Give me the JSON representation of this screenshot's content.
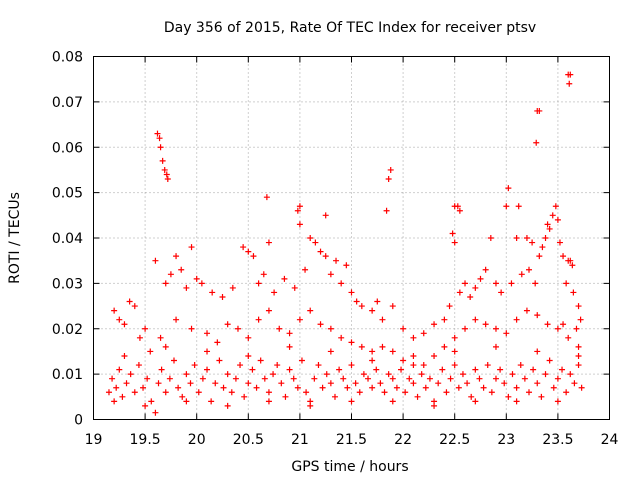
{
  "chart_data": {
    "type": "scatter",
    "title": "Day 356 of 2015, Rate Of TEC Index for receiver ptsv",
    "xlabel": "GPS time / hours",
    "ylabel": "ROTI / TECUs",
    "xlim": [
      19,
      24
    ],
    "ylim": [
      0,
      0.08
    ],
    "x_ticks": [
      19,
      19.5,
      20,
      20.5,
      21,
      21.5,
      22,
      22.5,
      23,
      23.5,
      24
    ],
    "x_tick_labels": [
      "19",
      "19.5",
      "20",
      "20.5",
      "21",
      "21.5",
      "22",
      "22.5",
      "23",
      "23.5",
      "24"
    ],
    "y_ticks": [
      0,
      0.01,
      0.02,
      0.03,
      0.04,
      0.05,
      0.06,
      0.07,
      0.08
    ],
    "y_tick_labels": [
      "0",
      "0.01",
      "0.02",
      "0.03",
      "0.04",
      "0.05",
      "0.06",
      "0.07",
      "0.08"
    ],
    "grid": true,
    "marker": "+",
    "color": "#ff0000",
    "series": [
      {
        "name": "ROTI",
        "points": [
          [
            19.62,
            0.063
          ],
          [
            19.64,
            0.062
          ],
          [
            19.65,
            0.06
          ],
          [
            19.67,
            0.057
          ],
          [
            19.69,
            0.055
          ],
          [
            19.71,
            0.054
          ],
          [
            19.72,
            0.053
          ],
          [
            23.6,
            0.076
          ],
          [
            23.62,
            0.076
          ],
          [
            23.61,
            0.074
          ],
          [
            23.3,
            0.068
          ],
          [
            23.32,
            0.068
          ],
          [
            23.29,
            0.061
          ],
          [
            21.88,
            0.055
          ],
          [
            21.86,
            0.053
          ],
          [
            21.84,
            0.046
          ],
          [
            23.02,
            0.051
          ],
          [
            23.0,
            0.047
          ],
          [
            23.12,
            0.047
          ],
          [
            22.5,
            0.047
          ],
          [
            22.53,
            0.047
          ],
          [
            22.55,
            0.046
          ],
          [
            21.0,
            0.047
          ],
          [
            20.98,
            0.046
          ],
          [
            21.0,
            0.043
          ],
          [
            21.25,
            0.045
          ],
          [
            20.68,
            0.049
          ],
          [
            23.4,
            0.043
          ],
          [
            23.45,
            0.045
          ],
          [
            23.48,
            0.047
          ],
          [
            23.5,
            0.044
          ],
          [
            23.38,
            0.04
          ],
          [
            23.42,
            0.042
          ],
          [
            23.52,
            0.039
          ],
          [
            23.32,
            0.036
          ],
          [
            23.35,
            0.038
          ],
          [
            23.55,
            0.036
          ],
          [
            23.62,
            0.035
          ],
          [
            23.64,
            0.034
          ],
          [
            23.6,
            0.035
          ],
          [
            22.5,
            0.039
          ],
          [
            22.48,
            0.041
          ],
          [
            22.85,
            0.04
          ],
          [
            23.1,
            0.04
          ],
          [
            23.2,
            0.04
          ],
          [
            23.25,
            0.039
          ],
          [
            21.1,
            0.04
          ],
          [
            21.15,
            0.039
          ],
          [
            21.2,
            0.037
          ],
          [
            21.25,
            0.036
          ],
          [
            20.45,
            0.038
          ],
          [
            20.5,
            0.037
          ],
          [
            20.55,
            0.036
          ],
          [
            19.95,
            0.038
          ],
          [
            19.8,
            0.036
          ],
          [
            19.6,
            0.035
          ],
          [
            20.7,
            0.039
          ],
          [
            21.35,
            0.035
          ],
          [
            21.45,
            0.034
          ],
          [
            19.2,
            0.024
          ],
          [
            19.25,
            0.022
          ],
          [
            19.3,
            0.021
          ],
          [
            19.35,
            0.026
          ],
          [
            19.4,
            0.025
          ],
          [
            19.45,
            0.018
          ],
          [
            19.5,
            0.02
          ],
          [
            19.7,
            0.03
          ],
          [
            19.75,
            0.032
          ],
          [
            19.85,
            0.033
          ],
          [
            19.9,
            0.029
          ],
          [
            20.0,
            0.031
          ],
          [
            20.05,
            0.03
          ],
          [
            20.15,
            0.028
          ],
          [
            20.25,
            0.027
          ],
          [
            20.35,
            0.029
          ],
          [
            20.6,
            0.03
          ],
          [
            20.65,
            0.032
          ],
          [
            20.75,
            0.028
          ],
          [
            20.85,
            0.031
          ],
          [
            20.95,
            0.029
          ],
          [
            21.05,
            0.033
          ],
          [
            21.3,
            0.032
          ],
          [
            21.4,
            0.03
          ],
          [
            21.5,
            0.028
          ],
          [
            21.55,
            0.026
          ],
          [
            21.6,
            0.025
          ],
          [
            21.7,
            0.024
          ],
          [
            21.75,
            0.026
          ],
          [
            21.8,
            0.022
          ],
          [
            21.9,
            0.025
          ],
          [
            22.0,
            0.02
          ],
          [
            22.1,
            0.018
          ],
          [
            22.2,
            0.019
          ],
          [
            22.3,
            0.021
          ],
          [
            22.4,
            0.022
          ],
          [
            22.45,
            0.025
          ],
          [
            22.55,
            0.028
          ],
          [
            22.6,
            0.03
          ],
          [
            22.65,
            0.027
          ],
          [
            22.7,
            0.029
          ],
          [
            22.75,
            0.031
          ],
          [
            22.8,
            0.033
          ],
          [
            22.9,
            0.03
          ],
          [
            22.95,
            0.028
          ],
          [
            23.05,
            0.03
          ],
          [
            23.15,
            0.032
          ],
          [
            23.22,
            0.033
          ],
          [
            23.28,
            0.03
          ],
          [
            23.58,
            0.03
          ],
          [
            23.65,
            0.028
          ],
          [
            23.7,
            0.025
          ],
          [
            23.72,
            0.022
          ],
          [
            23.68,
            0.02
          ],
          [
            23.55,
            0.021
          ],
          [
            19.55,
            0.015
          ],
          [
            19.65,
            0.018
          ],
          [
            19.8,
            0.022
          ],
          [
            19.95,
            0.02
          ],
          [
            20.1,
            0.019
          ],
          [
            20.2,
            0.017
          ],
          [
            20.3,
            0.021
          ],
          [
            20.4,
            0.02
          ],
          [
            20.5,
            0.018
          ],
          [
            20.6,
            0.022
          ],
          [
            20.7,
            0.024
          ],
          [
            20.8,
            0.02
          ],
          [
            20.9,
            0.019
          ],
          [
            21.0,
            0.022
          ],
          [
            21.1,
            0.024
          ],
          [
            21.2,
            0.021
          ],
          [
            21.3,
            0.02
          ],
          [
            21.4,
            0.018
          ],
          [
            21.5,
            0.017
          ],
          [
            21.6,
            0.016
          ],
          [
            21.7,
            0.015
          ],
          [
            21.8,
            0.016
          ],
          [
            21.9,
            0.015
          ],
          [
            22.0,
            0.013
          ],
          [
            22.1,
            0.014
          ],
          [
            22.2,
            0.012
          ],
          [
            22.3,
            0.014
          ],
          [
            22.4,
            0.016
          ],
          [
            22.5,
            0.018
          ],
          [
            22.6,
            0.02
          ],
          [
            22.7,
            0.022
          ],
          [
            22.8,
            0.021
          ],
          [
            22.9,
            0.02
          ],
          [
            23.0,
            0.019
          ],
          [
            23.1,
            0.022
          ],
          [
            23.2,
            0.024
          ],
          [
            23.3,
            0.023
          ],
          [
            23.4,
            0.021
          ],
          [
            23.5,
            0.02
          ],
          [
            23.6,
            0.018
          ],
          [
            23.7,
            0.016
          ],
          [
            19.15,
            0.006
          ],
          [
            19.18,
            0.009
          ],
          [
            19.22,
            0.007
          ],
          [
            19.25,
            0.011
          ],
          [
            19.28,
            0.005
          ],
          [
            19.32,
            0.008
          ],
          [
            19.36,
            0.01
          ],
          [
            19.4,
            0.006
          ],
          [
            19.44,
            0.012
          ],
          [
            19.48,
            0.007
          ],
          [
            19.52,
            0.009
          ],
          [
            19.56,
            0.004
          ],
          [
            19.6,
            0.0015
          ],
          [
            19.63,
            0.008
          ],
          [
            19.66,
            0.011
          ],
          [
            19.7,
            0.006
          ],
          [
            19.74,
            0.009
          ],
          [
            19.78,
            0.013
          ],
          [
            19.82,
            0.007
          ],
          [
            19.86,
            0.005
          ],
          [
            19.9,
            0.01
          ],
          [
            19.94,
            0.008
          ],
          [
            19.98,
            0.012
          ],
          [
            20.02,
            0.006
          ],
          [
            20.06,
            0.009
          ],
          [
            20.1,
            0.011
          ],
          [
            20.14,
            0.004
          ],
          [
            20.18,
            0.008
          ],
          [
            20.22,
            0.013
          ],
          [
            20.26,
            0.007
          ],
          [
            20.3,
            0.01
          ],
          [
            20.34,
            0.006
          ],
          [
            20.38,
            0.009
          ],
          [
            20.42,
            0.012
          ],
          [
            20.46,
            0.005
          ],
          [
            20.5,
            0.008
          ],
          [
            20.54,
            0.011
          ],
          [
            20.58,
            0.007
          ],
          [
            20.62,
            0.013
          ],
          [
            20.66,
            0.009
          ],
          [
            20.7,
            0.006
          ],
          [
            20.74,
            0.01
          ],
          [
            20.78,
            0.012
          ],
          [
            20.82,
            0.008
          ],
          [
            20.86,
            0.005
          ],
          [
            20.9,
            0.011
          ],
          [
            20.94,
            0.009
          ],
          [
            20.98,
            0.007
          ],
          [
            21.02,
            0.013
          ],
          [
            21.06,
            0.006
          ],
          [
            21.1,
            0.004
          ],
          [
            21.14,
            0.009
          ],
          [
            21.18,
            0.012
          ],
          [
            21.22,
            0.007
          ],
          [
            21.26,
            0.01
          ],
          [
            21.3,
            0.008
          ],
          [
            21.34,
            0.005
          ],
          [
            21.38,
            0.011
          ],
          [
            21.42,
            0.009
          ],
          [
            21.46,
            0.007
          ],
          [
            21.5,
            0.012
          ],
          [
            21.54,
            0.008
          ],
          [
            21.58,
            0.006
          ],
          [
            21.62,
            0.01
          ],
          [
            21.66,
            0.009
          ],
          [
            21.7,
            0.007
          ],
          [
            21.74,
            0.011
          ],
          [
            21.78,
            0.008
          ],
          [
            21.82,
            0.006
          ],
          [
            21.86,
            0.01
          ],
          [
            21.9,
            0.009
          ],
          [
            21.94,
            0.007
          ],
          [
            21.98,
            0.011
          ],
          [
            22.02,
            0.006
          ],
          [
            22.06,
            0.009
          ],
          [
            22.1,
            0.008
          ],
          [
            22.14,
            0.005
          ],
          [
            22.18,
            0.01
          ],
          [
            22.22,
            0.007
          ],
          [
            22.26,
            0.009
          ],
          [
            22.3,
            0.003
          ],
          [
            22.34,
            0.008
          ],
          [
            22.38,
            0.011
          ],
          [
            22.42,
            0.006
          ],
          [
            22.46,
            0.009
          ],
          [
            22.5,
            0.012
          ],
          [
            22.54,
            0.007
          ],
          [
            22.58,
            0.01
          ],
          [
            22.62,
            0.008
          ],
          [
            22.66,
            0.005
          ],
          [
            22.7,
            0.011
          ],
          [
            22.74,
            0.009
          ],
          [
            22.78,
            0.007
          ],
          [
            22.82,
            0.012
          ],
          [
            22.86,
            0.006
          ],
          [
            22.9,
            0.009
          ],
          [
            22.94,
            0.011
          ],
          [
            22.98,
            0.008
          ],
          [
            23.02,
            0.005
          ],
          [
            23.06,
            0.01
          ],
          [
            23.1,
            0.007
          ],
          [
            23.14,
            0.012
          ],
          [
            23.18,
            0.009
          ],
          [
            23.22,
            0.006
          ],
          [
            23.26,
            0.011
          ],
          [
            23.3,
            0.008
          ],
          [
            23.34,
            0.005
          ],
          [
            23.38,
            0.01
          ],
          [
            23.42,
            0.013
          ],
          [
            23.46,
            0.007
          ],
          [
            23.5,
            0.009
          ],
          [
            23.54,
            0.011
          ],
          [
            23.58,
            0.006
          ],
          [
            23.62,
            0.01
          ],
          [
            23.66,
            0.008
          ],
          [
            23.7,
            0.012
          ],
          [
            23.73,
            0.007
          ],
          [
            19.2,
            0.004
          ],
          [
            19.5,
            0.003
          ],
          [
            19.9,
            0.004
          ],
          [
            20.3,
            0.003
          ],
          [
            20.7,
            0.004
          ],
          [
            21.1,
            0.003
          ],
          [
            21.5,
            0.004
          ],
          [
            21.9,
            0.004
          ],
          [
            22.3,
            0.004
          ],
          [
            22.7,
            0.004
          ],
          [
            23.1,
            0.004
          ],
          [
            23.5,
            0.004
          ],
          [
            19.3,
            0.014
          ],
          [
            19.7,
            0.016
          ],
          [
            20.1,
            0.015
          ],
          [
            20.5,
            0.014
          ],
          [
            20.9,
            0.016
          ],
          [
            21.3,
            0.015
          ],
          [
            21.7,
            0.013
          ],
          [
            22.1,
            0.012
          ],
          [
            22.5,
            0.015
          ],
          [
            22.9,
            0.016
          ],
          [
            23.3,
            0.015
          ],
          [
            23.7,
            0.014
          ]
        ]
      }
    ]
  }
}
